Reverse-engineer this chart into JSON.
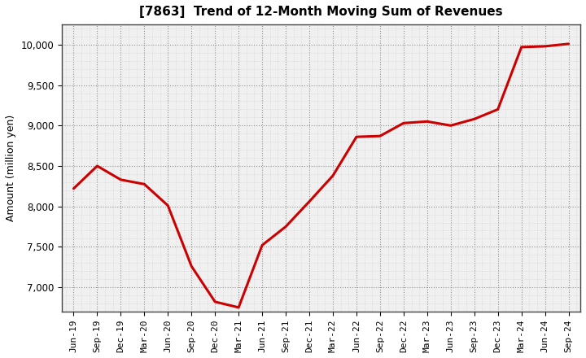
{
  "title": "[7863]  Trend of 12-Month Moving Sum of Revenues",
  "ylabel": "Amount (million yen)",
  "line_color": "#cc0000",
  "line_width": 2.2,
  "background_color": "#ffffff",
  "plot_bg_color": "#f0f0f0",
  "grid_color_major": "#888888",
  "grid_color_minor": "#bbbbbb",
  "ylim": [
    6700,
    10250
  ],
  "yticks": [
    7000,
    7500,
    8000,
    8500,
    9000,
    9500,
    10000
  ],
  "x_labels": [
    "Jun-19",
    "Sep-19",
    "Dec-19",
    "Mar-20",
    "Jun-20",
    "Sep-20",
    "Dec-20",
    "Mar-21",
    "Jun-21",
    "Sep-21",
    "Dec-21",
    "Mar-22",
    "Jun-22",
    "Sep-22",
    "Dec-22",
    "Mar-23",
    "Jun-23",
    "Sep-23",
    "Dec-23",
    "Mar-24",
    "Jun-24",
    "Sep-24"
  ],
  "values": [
    8220,
    8500,
    8330,
    8275,
    8010,
    7260,
    6820,
    6750,
    7520,
    7750,
    8060,
    8380,
    8860,
    8870,
    9030,
    9050,
    9000,
    9080,
    9200,
    9970,
    9980,
    10010
  ]
}
